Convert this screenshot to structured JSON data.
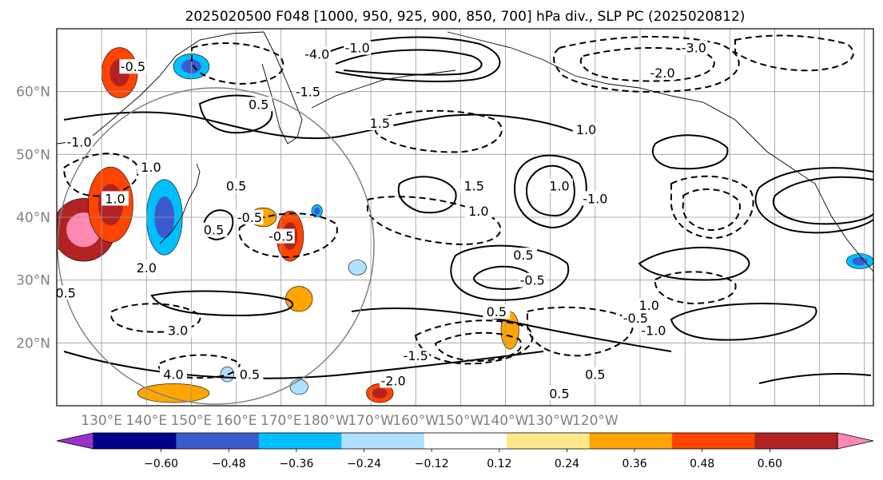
{
  "chart_data": {
    "type": "contour",
    "title": "2025020500 F048 [1000, 950, 925, 900, 850, 700] hPa div., SLP PC (2025020812)",
    "xlabel": "",
    "ylabel": "",
    "lon_range": [
      120,
      302
    ],
    "lat_range": [
      10,
      70
    ],
    "lon_ticks": [
      "130°E",
      "140°E",
      "150°E",
      "160°E",
      "170°E",
      "180°W",
      "170°W",
      "160°W",
      "150°W",
      "140°W",
      "130°W",
      "120°W"
    ],
    "lat_ticks": [
      "20°N",
      "30°N",
      "40°N",
      "50°N",
      "60°N"
    ],
    "grid": true,
    "colorbar": {
      "ticks": [
        "−0.60",
        "−0.48",
        "−0.36",
        "−0.24",
        "−0.12",
        "0.12",
        "0.24",
        "0.36",
        "0.48",
        "0.60"
      ],
      "colors": [
        "#9932cc",
        "#00008b",
        "#3a5bcf",
        "#00bfff",
        "#b0e0ff",
        "#ffffff",
        "#ffe88a",
        "#ffa500",
        "#ff4500",
        "#b22222",
        "#ff88b0"
      ],
      "extend": "both"
    },
    "contour_labels": [
      "-0.5",
      "-1.0",
      "-1.5",
      "-2.0",
      "-3.0",
      "-4.0",
      "0.5",
      "1.0",
      "1.5",
      "2.0",
      "3.0",
      "4.0"
    ],
    "shaded_regions": [
      {
        "lon": 134,
        "lat": 63,
        "rx": 4,
        "ry": 4,
        "level": 0.36
      },
      {
        "lon": 126,
        "lat": 38,
        "rx": 7,
        "ry": 5,
        "level": 0.48
      },
      {
        "lon": 132,
        "lat": 42,
        "rx": 5,
        "ry": 6,
        "level": 0.36
      },
      {
        "lon": 144,
        "lat": 40,
        "rx": 4,
        "ry": 6,
        "level": -0.36
      },
      {
        "lon": 150,
        "lat": 64,
        "rx": 4,
        "ry": 2,
        "level": -0.36
      },
      {
        "lon": 172,
        "lat": 37,
        "rx": 3,
        "ry": 4,
        "level": 0.36
      },
      {
        "lon": 166,
        "lat": 40,
        "rx": 3,
        "ry": 1.5,
        "level": 0.24
      },
      {
        "lon": 174,
        "lat": 27,
        "rx": 3,
        "ry": 2,
        "level": 0.24
      },
      {
        "lon": 146,
        "lat": 12,
        "rx": 8,
        "ry": 1.5,
        "level": 0.24
      },
      {
        "lon": 192,
        "lat": 12,
        "rx": 3,
        "ry": 1.5,
        "level": 0.36
      },
      {
        "lon": 221,
        "lat": 22,
        "rx": 2,
        "ry": 3,
        "level": 0.24
      },
      {
        "lon": 299,
        "lat": 33,
        "rx": 3,
        "ry": 1.2,
        "level": -0.36
      },
      {
        "lon": 187,
        "lat": 32,
        "rx": 2,
        "ry": 1.2,
        "level": -0.24
      },
      {
        "lon": 178,
        "lat": 41,
        "rx": 1.2,
        "ry": 1,
        "level": -0.36
      },
      {
        "lon": 158,
        "lat": 15,
        "rx": 1.5,
        "ry": 1.2,
        "level": -0.24
      },
      {
        "lon": 174,
        "lat": 13,
        "rx": 2,
        "ry": 1.2,
        "level": -0.24
      }
    ]
  }
}
